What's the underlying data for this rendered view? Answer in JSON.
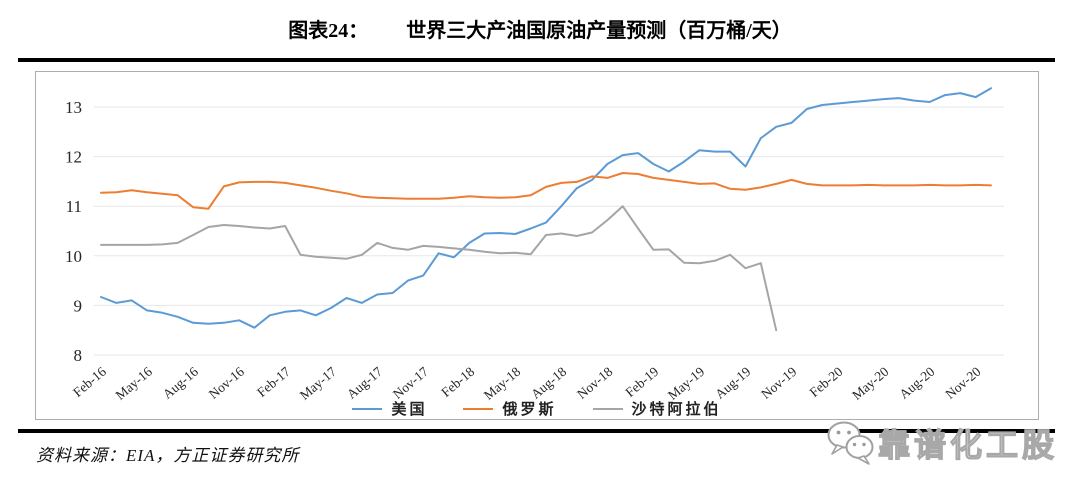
{
  "header": {
    "chart_label": "图表24：",
    "title": "世界三大产油国原油产量预测（百万桶/天）"
  },
  "footer": {
    "source": "资料来源：EIA，方正证券研究所"
  },
  "watermark": {
    "icon": "wechat-bubbles-icon",
    "text": "靠谱化工股"
  },
  "chart_data": {
    "type": "line",
    "title": "世界三大产油国原油产量预测（百万桶/天）",
    "unit_label": "百万桶/天",
    "ylim": [
      8,
      13.5
    ],
    "yticks": [
      8,
      9,
      10,
      11,
      12,
      13
    ],
    "grid": "horizontal",
    "legend_position": "bottom-center",
    "x_start": "Feb-16",
    "x_end": "Dec-20",
    "months_total": 59,
    "tick_step": 3,
    "tick_labels": [
      "Feb-16",
      "May-16",
      "Aug-16",
      "Nov-16",
      "Feb-17",
      "May-17",
      "Aug-17",
      "Nov-17",
      "Feb-18",
      "May-18",
      "Aug-18",
      "Nov-18",
      "Feb-19",
      "May-19",
      "Aug-19",
      "Nov-19",
      "Feb-20",
      "May-20",
      "Aug-20",
      "Nov-20"
    ],
    "series": [
      {
        "key": "usa",
        "name": "美国",
        "color": "#5B9BD5",
        "values": [
          9.17,
          9.05,
          9.1,
          8.9,
          8.85,
          8.77,
          8.65,
          8.63,
          8.65,
          8.7,
          8.55,
          8.8,
          8.87,
          8.9,
          8.8,
          8.95,
          9.15,
          9.05,
          9.22,
          9.25,
          9.5,
          9.6,
          10.05,
          9.97,
          10.26,
          10.45,
          10.46,
          10.44,
          10.55,
          10.67,
          11.0,
          11.36,
          11.53,
          11.85,
          12.03,
          12.07,
          11.85,
          11.7,
          11.9,
          12.13,
          12.1,
          12.1,
          11.8,
          12.37,
          12.6,
          12.68,
          12.96,
          13.04,
          13.07,
          13.1,
          13.13,
          13.16,
          13.18,
          13.13,
          13.1,
          13.24,
          13.28,
          13.2,
          13.38
        ]
      },
      {
        "key": "russia",
        "name": "俄罗斯",
        "color": "#ED7D31",
        "values": [
          11.27,
          11.28,
          11.32,
          11.28,
          11.25,
          11.22,
          10.98,
          10.95,
          11.4,
          11.48,
          11.49,
          11.49,
          11.47,
          11.42,
          11.37,
          11.31,
          11.26,
          11.19,
          11.17,
          11.16,
          11.15,
          11.15,
          11.15,
          11.17,
          11.2,
          11.18,
          11.17,
          11.18,
          11.22,
          11.39,
          11.47,
          11.49,
          11.6,
          11.57,
          11.67,
          11.65,
          11.57,
          11.53,
          11.49,
          11.45,
          11.46,
          11.35,
          11.33,
          11.38,
          11.45,
          11.53,
          11.45,
          11.42,
          11.42,
          11.42,
          11.43,
          11.42,
          11.42,
          11.42,
          11.43,
          11.42,
          11.42,
          11.43,
          11.42
        ]
      },
      {
        "key": "saudi",
        "name": "沙特阿拉伯",
        "color": "#A5A5A5",
        "values": [
          10.22,
          10.22,
          10.22,
          10.22,
          10.23,
          10.26,
          10.42,
          10.58,
          10.62,
          10.6,
          10.57,
          10.55,
          10.6,
          10.02,
          9.98,
          9.96,
          9.94,
          10.02,
          10.26,
          10.16,
          10.12,
          10.2,
          10.18,
          10.15,
          10.12,
          10.08,
          10.05,
          10.06,
          10.03,
          10.42,
          10.45,
          10.4,
          10.47,
          10.72,
          11.0,
          10.55,
          10.12,
          10.13,
          9.86,
          9.85,
          9.9,
          10.02,
          9.75,
          9.85,
          8.5
        ]
      }
    ]
  }
}
